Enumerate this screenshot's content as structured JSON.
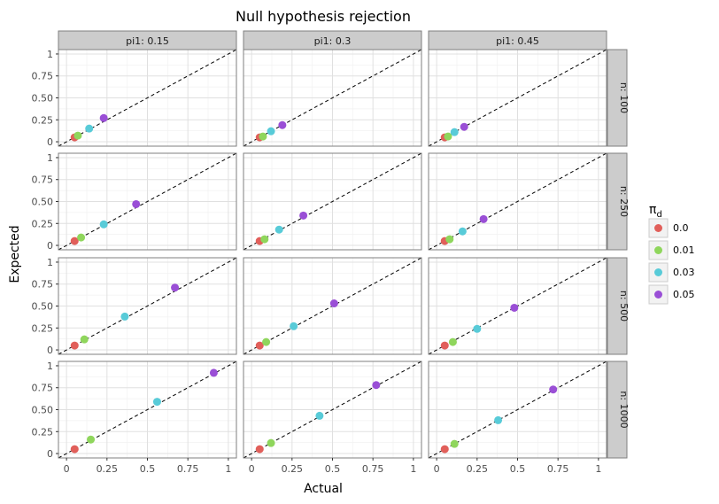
{
  "chart_data": {
    "type": "scatter",
    "title": "Null hypothesis rejection",
    "xlabel": "Actual",
    "ylabel": "Expected",
    "xlim": [
      -0.05,
      1.05
    ],
    "ylim": [
      -0.05,
      1.05
    ],
    "x_ticks": [
      "0",
      "0.25",
      "0.5",
      "0.75",
      "1"
    ],
    "y_ticks": [
      "0",
      "0.25",
      "0.50",
      "0.75",
      "1"
    ],
    "grid": true,
    "reference_line": "y = x (dashed)",
    "col_facets": [
      "pi1: 0.15",
      "pi1: 0.3",
      "pi1: 0.45"
    ],
    "row_facets": [
      "n: 100",
      "n: 250",
      "n: 500",
      "n: 1000"
    ],
    "legend": {
      "title": "π_d",
      "title_main": "π",
      "title_sub": "d",
      "placement": "right",
      "entries": [
        {
          "label": "0.0",
          "color": "#E15F5A"
        },
        {
          "label": "0.01",
          "color": "#8FD65C"
        },
        {
          "label": "0.03",
          "color": "#58CBD8"
        },
        {
          "label": "0.05",
          "color": "#9A4FD6"
        }
      ]
    },
    "panels": [
      {
        "row": 0,
        "col": 0,
        "points": [
          [
            0.05,
            0.05
          ],
          [
            0.07,
            0.07
          ],
          [
            0.14,
            0.15
          ],
          [
            0.23,
            0.27
          ]
        ]
      },
      {
        "row": 0,
        "col": 1,
        "points": [
          [
            0.05,
            0.05
          ],
          [
            0.07,
            0.06
          ],
          [
            0.12,
            0.12
          ],
          [
            0.19,
            0.19
          ]
        ]
      },
      {
        "row": 0,
        "col": 2,
        "points": [
          [
            0.05,
            0.05
          ],
          [
            0.07,
            0.06
          ],
          [
            0.11,
            0.11
          ],
          [
            0.17,
            0.17
          ]
        ]
      },
      {
        "row": 1,
        "col": 0,
        "points": [
          [
            0.05,
            0.05
          ],
          [
            0.09,
            0.09
          ],
          [
            0.23,
            0.24
          ],
          [
            0.43,
            0.47
          ]
        ]
      },
      {
        "row": 1,
        "col": 1,
        "points": [
          [
            0.05,
            0.05
          ],
          [
            0.08,
            0.07
          ],
          [
            0.17,
            0.18
          ],
          [
            0.32,
            0.34
          ]
        ]
      },
      {
        "row": 1,
        "col": 2,
        "points": [
          [
            0.05,
            0.05
          ],
          [
            0.08,
            0.07
          ],
          [
            0.16,
            0.16
          ],
          [
            0.29,
            0.3
          ]
        ]
      },
      {
        "row": 2,
        "col": 0,
        "points": [
          [
            0.05,
            0.05
          ],
          [
            0.11,
            0.12
          ],
          [
            0.36,
            0.38
          ],
          [
            0.67,
            0.71
          ]
        ]
      },
      {
        "row": 2,
        "col": 1,
        "points": [
          [
            0.05,
            0.05
          ],
          [
            0.09,
            0.09
          ],
          [
            0.26,
            0.27
          ],
          [
            0.51,
            0.53
          ]
        ]
      },
      {
        "row": 2,
        "col": 2,
        "points": [
          [
            0.05,
            0.05
          ],
          [
            0.1,
            0.09
          ],
          [
            0.25,
            0.24
          ],
          [
            0.48,
            0.48
          ]
        ]
      },
      {
        "row": 3,
        "col": 0,
        "points": [
          [
            0.05,
            0.05
          ],
          [
            0.15,
            0.16
          ],
          [
            0.56,
            0.59
          ],
          [
            0.91,
            0.92
          ]
        ]
      },
      {
        "row": 3,
        "col": 1,
        "points": [
          [
            0.05,
            0.05
          ],
          [
            0.12,
            0.12
          ],
          [
            0.42,
            0.43
          ],
          [
            0.77,
            0.78
          ]
        ]
      },
      {
        "row": 3,
        "col": 2,
        "points": [
          [
            0.05,
            0.05
          ],
          [
            0.11,
            0.11
          ],
          [
            0.38,
            0.38
          ],
          [
            0.72,
            0.73
          ]
        ]
      }
    ]
  }
}
